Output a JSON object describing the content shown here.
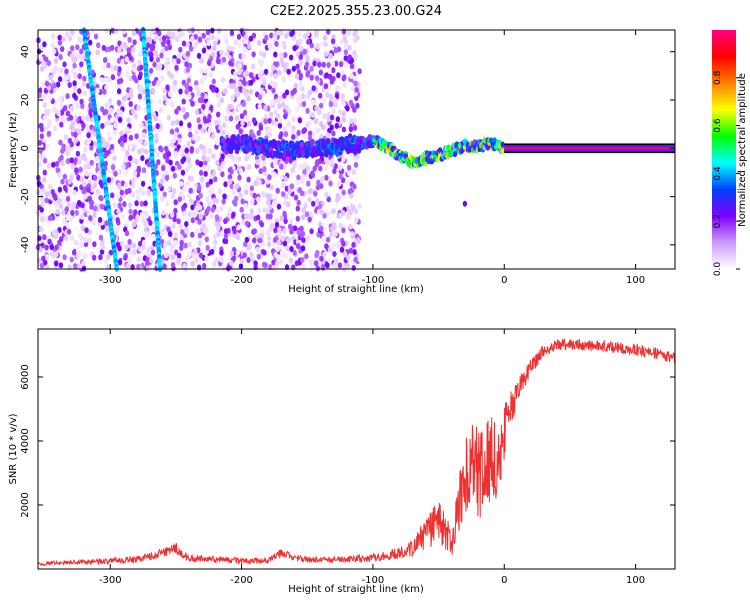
{
  "title": "C2E2.2025.355.23.00.G24",
  "chart_data": [
    {
      "type": "heatmap",
      "xlabel": "Height of straight line (km)",
      "ylabel": "Frequency (Hz)",
      "xlim": [
        -355,
        130
      ],
      "ylim": [
        -50,
        49
      ],
      "xticks": [
        -300,
        -200,
        -100,
        0,
        100
      ],
      "yticks": [
        -40,
        -20,
        0,
        20,
        40
      ],
      "colorbar": {
        "label": "Normalized spectral amplitude",
        "range": [
          0,
          1
        ],
        "ticks": [
          0.0,
          0.2,
          0.4,
          0.6,
          0.8
        ],
        "tick_labels": [
          "0.0",
          "0.2",
          "0.4",
          "0.6",
          "0.8"
        ],
        "colors": [
          "#ffffff",
          "#cc99ff",
          "#8000ff",
          "#0040ff",
          "#00ffff",
          "#00ff00",
          "#ffff00",
          "#ff8000",
          "#ff0000",
          "#ff0080"
        ]
      },
      "features": [
        {
          "kind": "scattered-noise",
          "x_range": [
            -355,
            -110
          ],
          "y_range": [
            -50,
            49
          ],
          "amplitude": 0.05
        },
        {
          "kind": "main-tone",
          "points": [
            [
              -215,
              1
            ],
            [
              -200,
              2
            ],
            [
              -180,
              0
            ],
            [
              -160,
              -1
            ],
            [
              -140,
              0
            ],
            [
              -120,
              1
            ],
            [
              -100,
              3
            ],
            [
              -90,
              1
            ],
            [
              -80,
              -3
            ],
            [
              -70,
              -6
            ],
            [
              -60,
              -4
            ],
            [
              -50,
              -3
            ],
            [
              -40,
              -1
            ],
            [
              -30,
              1
            ],
            [
              -20,
              1
            ],
            [
              -10,
              2
            ],
            [
              0,
              0
            ],
            [
              130,
              0
            ]
          ],
          "amplitude": 0.8
        },
        {
          "kind": "slanted-line",
          "from": [
            -320,
            49
          ],
          "to": [
            -295,
            -50
          ],
          "amplitude": 0.35
        },
        {
          "kind": "slanted-line",
          "from": [
            -275,
            49
          ],
          "to": [
            -262,
            -50
          ],
          "amplitude": 0.35
        },
        {
          "kind": "isolated-point",
          "at": [
            -30,
            -23
          ],
          "amplitude": 0.25
        }
      ]
    },
    {
      "type": "line",
      "xlabel": "Height of straight line (km)",
      "ylabel": "SNR (10 * v/v)",
      "xlim": [
        -355,
        130
      ],
      "ylim": [
        0,
        7500
      ],
      "xticks": [
        -300,
        -200,
        -100,
        0,
        100
      ],
      "yticks": [
        2000,
        4000,
        6000
      ],
      "series": [
        {
          "color": "#ee3030",
          "x": [
            -355,
            -340,
            -320,
            -300,
            -280,
            -260,
            -250,
            -240,
            -220,
            -200,
            -180,
            -170,
            -160,
            -150,
            -140,
            -120,
            -100,
            -90,
            -80,
            -70,
            -60,
            -50,
            -45,
            -40,
            -35,
            -30,
            -25,
            -20,
            -15,
            -10,
            -5,
            0,
            10,
            20,
            30,
            40,
            50,
            60,
            80,
            100,
            120,
            130
          ],
          "y": [
            150,
            200,
            220,
            250,
            300,
            500,
            620,
            350,
            300,
            250,
            260,
            500,
            350,
            300,
            280,
            300,
            350,
            400,
            500,
            700,
            1100,
            1500,
            1200,
            800,
            1800,
            2800,
            3300,
            3000,
            3300,
            3600,
            3500,
            4300,
            5600,
            6300,
            6800,
            7000,
            7050,
            7000,
            6950,
            6850,
            6700,
            6600
          ],
          "noise": [
            60,
            60,
            80,
            90,
            100,
            150,
            200,
            120,
            100,
            90,
            90,
            150,
            100,
            100,
            100,
            110,
            130,
            150,
            200,
            300,
            500,
            700,
            600,
            500,
            900,
            1300,
            1500,
            1500,
            1500,
            1500,
            1400,
            900,
            400,
            250,
            200,
            180,
            180,
            180,
            180,
            180,
            180,
            180
          ]
        }
      ]
    }
  ]
}
